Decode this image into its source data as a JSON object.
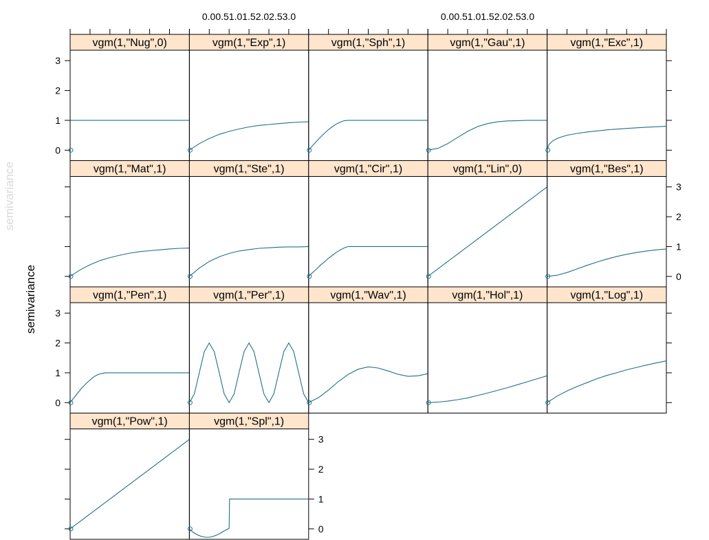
{
  "figure": {
    "ylabel": "semivariance",
    "top_axis_labels": [
      "0.00.51.01.52.02.53.0",
      "0.00.51.01.52.02.53.0"
    ]
  },
  "chart_data": {
    "type": "line",
    "layout": {
      "columns": 5,
      "rows": 4
    },
    "ylabel": "semivariance",
    "xlabel": "",
    "xlim": [
      0,
      3
    ],
    "ylim": [
      -0.35,
      3.35
    ],
    "y_ticks": [
      0,
      1,
      2,
      3
    ],
    "x_tick_count": 7,
    "grid": false,
    "line_color": "#1f6f8b",
    "strip_color": "#ffe5cc",
    "panels": [
      {
        "label": "vgm(1,\"Nug\",0)",
        "x": [
          0.01,
          3.0
        ],
        "y": [
          1.0,
          1.0
        ]
      },
      {
        "label": "vgm(1,\"Exp\",1)",
        "x": [
          0,
          0.25,
          0.5,
          0.75,
          1.0,
          1.25,
          1.5,
          1.75,
          2.0,
          2.25,
          2.5,
          2.75,
          3.0
        ],
        "y": [
          0,
          0.22,
          0.39,
          0.53,
          0.63,
          0.71,
          0.78,
          0.83,
          0.86,
          0.89,
          0.92,
          0.94,
          0.95
        ]
      },
      {
        "label": "vgm(1,\"Sph\",1)",
        "x": [
          0,
          0.1,
          0.2,
          0.3,
          0.4,
          0.5,
          0.6,
          0.7,
          0.8,
          0.9,
          1.0,
          1.5,
          2.0,
          2.5,
          3.0
        ],
        "y": [
          0,
          0.15,
          0.3,
          0.44,
          0.57,
          0.69,
          0.79,
          0.88,
          0.94,
          0.99,
          1.0,
          1.0,
          1.0,
          1.0,
          1.0
        ]
      },
      {
        "label": "vgm(1,\"Gau\",1)",
        "x": [
          0,
          0.25,
          0.5,
          0.75,
          1.0,
          1.25,
          1.5,
          1.75,
          2.0,
          2.25,
          2.5,
          2.75,
          3.0
        ],
        "y": [
          0,
          0.06,
          0.22,
          0.43,
          0.63,
          0.79,
          0.89,
          0.95,
          0.98,
          0.99,
          1.0,
          1.0,
          1.0
        ]
      },
      {
        "label": "vgm(1,\"Exc\",1)",
        "x": [
          0,
          0.05,
          0.15,
          0.3,
          0.5,
          0.75,
          1.0,
          1.5,
          2.0,
          2.5,
          3.0
        ],
        "y": [
          0,
          0.2,
          0.32,
          0.42,
          0.5,
          0.56,
          0.61,
          0.68,
          0.73,
          0.77,
          0.8
        ]
      },
      {
        "label": "vgm(1,\"Mat\",1)",
        "x": [
          0,
          0.25,
          0.5,
          0.75,
          1.0,
          1.25,
          1.5,
          1.75,
          2.0,
          2.25,
          2.5,
          2.75,
          3.0
        ],
        "y": [
          0,
          0.22,
          0.39,
          0.53,
          0.63,
          0.71,
          0.78,
          0.83,
          0.86,
          0.89,
          0.92,
          0.94,
          0.95
        ]
      },
      {
        "label": "vgm(1,\"Ste\",1)",
        "x": [
          0,
          0.25,
          0.5,
          0.75,
          1.0,
          1.25,
          1.5,
          1.75,
          2.0,
          2.25,
          2.5,
          2.75,
          3.0
        ],
        "y": [
          0,
          0.28,
          0.5,
          0.66,
          0.77,
          0.85,
          0.9,
          0.94,
          0.96,
          0.98,
          0.99,
          0.99,
          1.0
        ]
      },
      {
        "label": "vgm(1,\"Cir\",1)",
        "x": [
          0,
          0.1,
          0.2,
          0.3,
          0.4,
          0.5,
          0.6,
          0.7,
          0.8,
          0.9,
          1.0,
          1.5,
          2.0,
          2.5,
          3.0
        ],
        "y": [
          0,
          0.13,
          0.25,
          0.38,
          0.49,
          0.61,
          0.71,
          0.81,
          0.89,
          0.96,
          1.0,
          1.0,
          1.0,
          1.0,
          1.0
        ]
      },
      {
        "label": "vgm(1,\"Lin\",0)",
        "x": [
          0,
          3.0
        ],
        "y": [
          0,
          3.0
        ]
      },
      {
        "label": "vgm(1,\"Bes\",1)",
        "x": [
          0,
          0.25,
          0.5,
          0.75,
          1.0,
          1.25,
          1.5,
          1.75,
          2.0,
          2.25,
          2.5,
          2.75,
          3.0
        ],
        "y": [
          0,
          0.04,
          0.13,
          0.25,
          0.37,
          0.48,
          0.58,
          0.67,
          0.74,
          0.8,
          0.85,
          0.89,
          0.92
        ]
      },
      {
        "label": "vgm(1,\"Pen\",1)",
        "x": [
          0,
          0.1,
          0.2,
          0.3,
          0.4,
          0.5,
          0.6,
          0.7,
          0.8,
          0.9,
          1.0,
          1.5,
          2.0,
          2.5,
          3.0
        ],
        "y": [
          0,
          0.17,
          0.34,
          0.5,
          0.64,
          0.76,
          0.87,
          0.94,
          0.98,
          1.0,
          1.0,
          1.0,
          1.0,
          1.0,
          1.0
        ]
      },
      {
        "label": "vgm(1,\"Per\",1)",
        "x": [
          0,
          0.125,
          0.25,
          0.375,
          0.5,
          0.625,
          0.75,
          0.875,
          1.0,
          1.125,
          1.25,
          1.375,
          1.5,
          1.625,
          1.75,
          1.875,
          2.0,
          2.125,
          2.25,
          2.375,
          2.5,
          2.625,
          2.75,
          2.875,
          3.0
        ],
        "y": [
          0,
          0.29,
          1.0,
          1.71,
          2.0,
          1.71,
          1.0,
          0.29,
          0,
          0.29,
          1.0,
          1.71,
          2.0,
          1.71,
          1.0,
          0.29,
          0,
          0.29,
          1.0,
          1.71,
          2.0,
          1.71,
          1.0,
          0.29,
          0
        ]
      },
      {
        "label": "vgm(1,\"Wav\",1)",
        "x": [
          0,
          0.25,
          0.5,
          0.75,
          1.0,
          1.25,
          1.5,
          1.75,
          2.0,
          2.25,
          2.5,
          2.75,
          3.0
        ],
        "y": [
          0,
          0.17,
          0.42,
          0.71,
          0.95,
          1.12,
          1.2,
          1.16,
          1.06,
          0.95,
          0.88,
          0.9,
          0.97
        ]
      },
      {
        "label": "vgm(1,\"Hol\",1)",
        "x": [
          0,
          0.25,
          0.5,
          0.75,
          1.0,
          1.25,
          1.5,
          1.75,
          2.0,
          2.25,
          2.5,
          2.75,
          3.0
        ],
        "y": [
          0,
          0.02,
          0.05,
          0.1,
          0.16,
          0.24,
          0.32,
          0.41,
          0.5,
          0.6,
          0.7,
          0.8,
          0.9
        ]
      },
      {
        "label": "vgm(1,\"Log\",1)",
        "x": [
          0,
          0.25,
          0.5,
          0.75,
          1.0,
          1.25,
          1.5,
          1.75,
          2.0,
          2.25,
          2.5,
          2.75,
          3.0
        ],
        "y": [
          0,
          0.22,
          0.39,
          0.54,
          0.67,
          0.8,
          0.91,
          1.0,
          1.1,
          1.18,
          1.26,
          1.33,
          1.4
        ]
      },
      {
        "label": "vgm(1,\"Pow\",1)",
        "x": [
          0,
          3.0
        ],
        "y": [
          0,
          3.0
        ]
      },
      {
        "label": "vgm(1,\"Spl\",1)",
        "x": [
          0,
          0.1,
          0.2,
          0.3,
          0.4,
          0.5,
          0.6,
          0.7,
          0.8,
          0.9,
          1.0,
          1.01,
          1.5,
          2.0,
          2.5,
          3.0
        ],
        "y": [
          0,
          -0.12,
          -0.2,
          -0.25,
          -0.28,
          -0.28,
          -0.25,
          -0.2,
          -0.13,
          -0.05,
          0.02,
          1.0,
          1.0,
          1.0,
          1.0,
          1.0
        ]
      }
    ]
  }
}
